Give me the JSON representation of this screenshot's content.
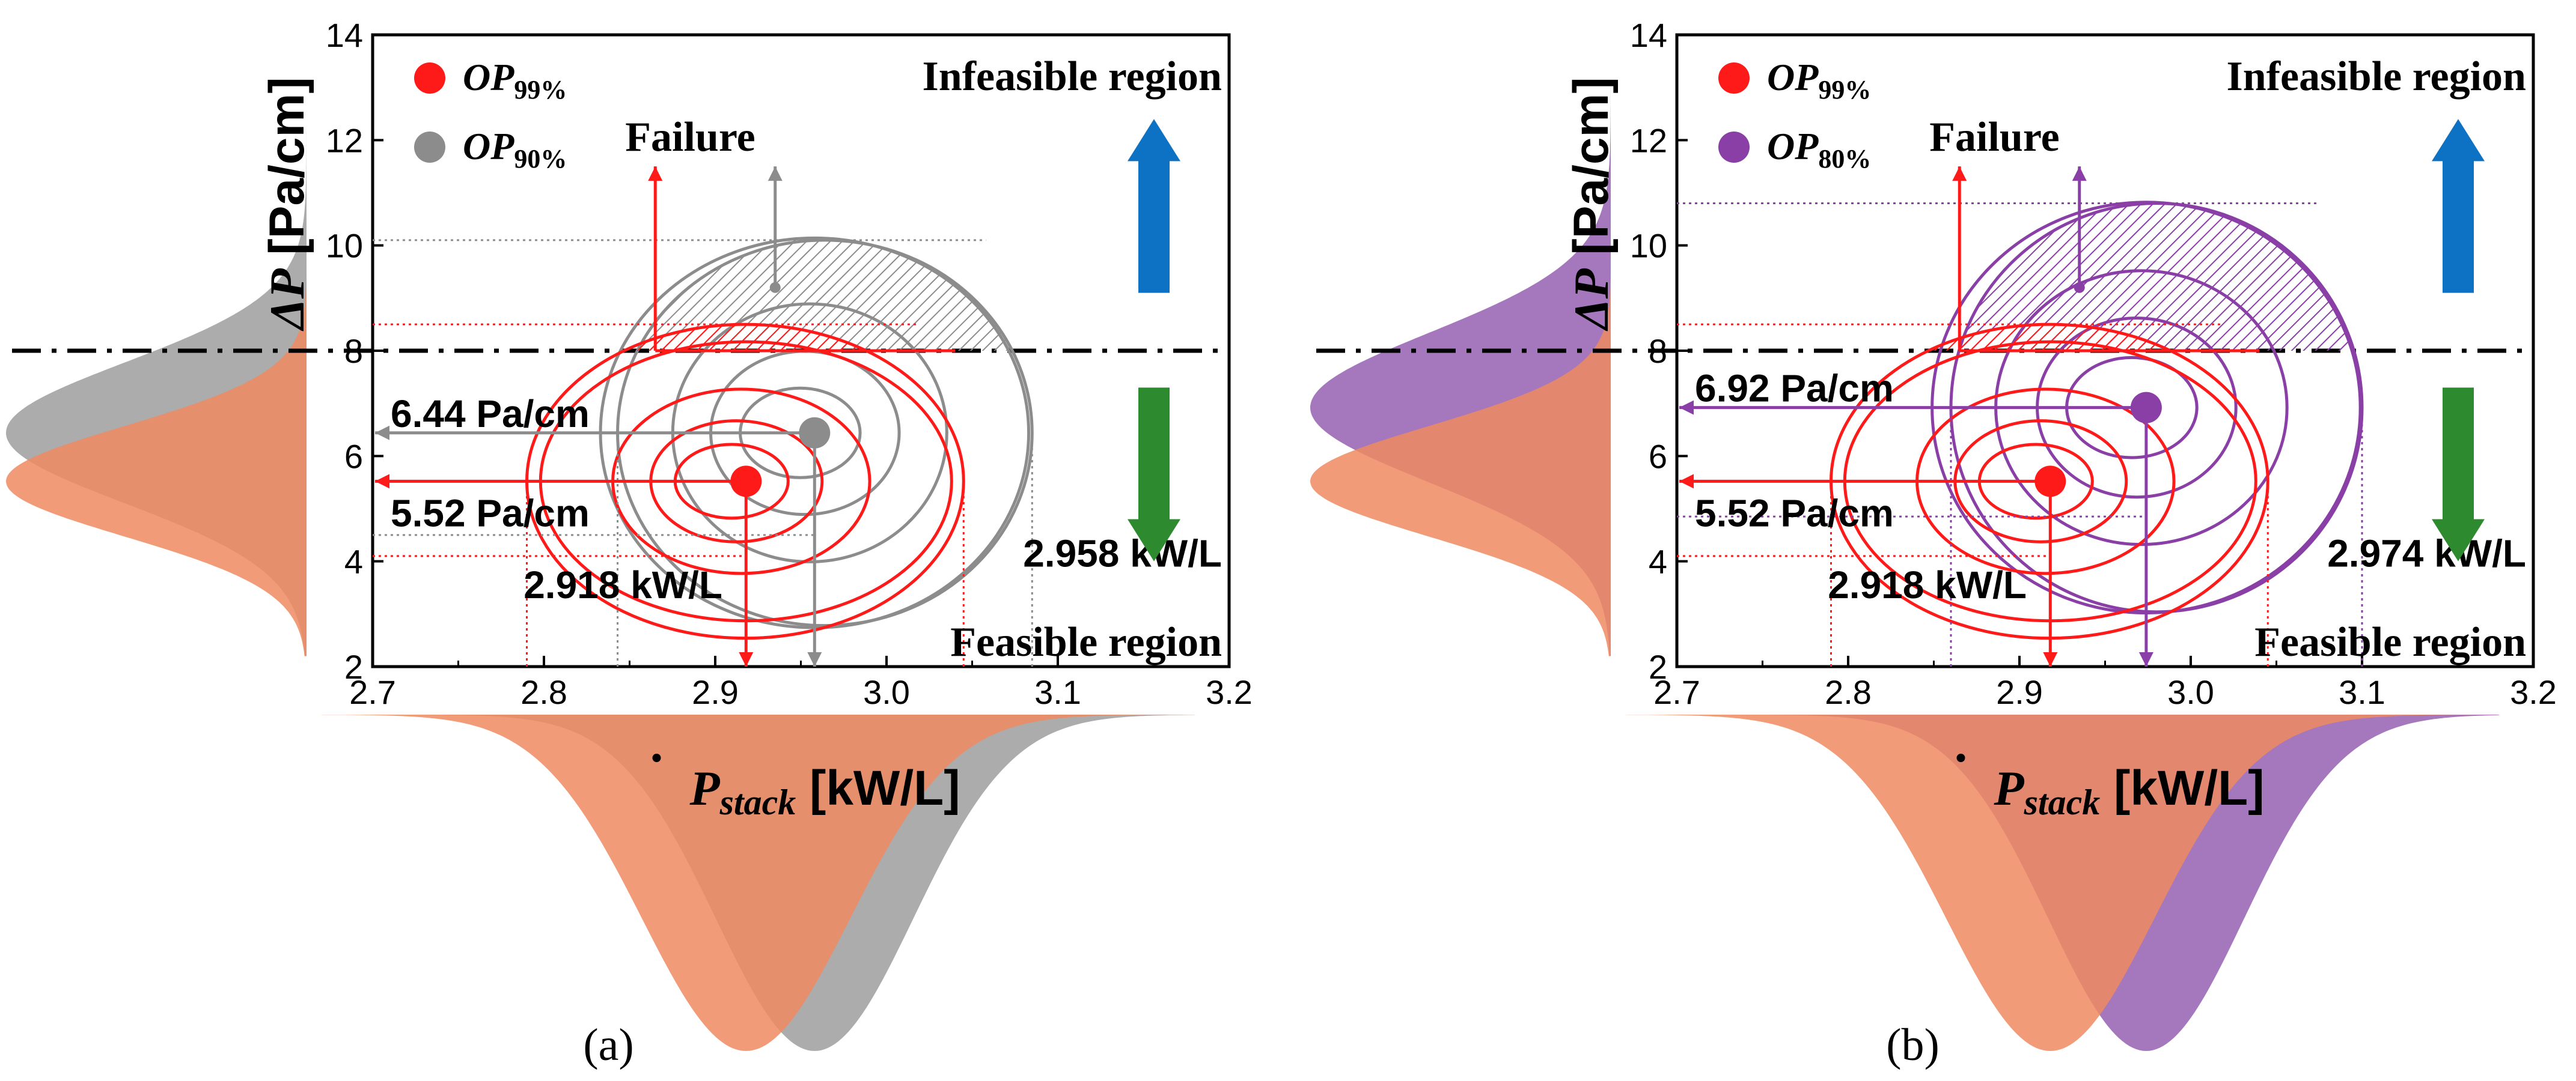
{
  "colors": {
    "red": "#ff1a1a",
    "gray": "#8c8c8c",
    "purple": "#8a3fa6",
    "orange_dist": "#ee8a62",
    "gray_dist": "#a8a8a8",
    "purple_dist": "#a070b8",
    "dark_overlap": "#c45a3e",
    "blue_arrow": "#0e72c4",
    "green_arrow": "#2e8a2e"
  },
  "chart_data": [
    {
      "type": "scatter",
      "panel_label": "(a)",
      "xlabel_main": "P",
      "xlabel_sub": "stack",
      "xlabel_unit": "[kW/L]",
      "ylabel_main": "ΔP",
      "ylabel_unit": "[Pa/cm]",
      "xlim": [
        2.7,
        3.2
      ],
      "ylim": [
        2,
        14
      ],
      "xticks": [
        "2.7",
        "2.8",
        "2.9",
        "3.0",
        "3.1",
        "3.2"
      ],
      "yticks": [
        "2",
        "4",
        "6",
        "8",
        "10",
        "12",
        "14"
      ],
      "threshold": 8,
      "infeasible_label": "Infeasible region",
      "feasible_label": "Feasible region",
      "failure_label": "Failure",
      "legend": [
        {
          "label_main": "OP",
          "label_sub": "99%",
          "color": "#ff1a1a"
        },
        {
          "label_main": "OP",
          "label_sub": "90%",
          "color": "#8c8c8c"
        }
      ],
      "series": [
        {
          "name": "OP99%",
          "x": 2.918,
          "y": 5.52,
          "color": "#ff1a1a",
          "x_label": "2.918 kW/L",
          "y_label": "5.52 Pa/cm",
          "x_ci": [
            2.79,
            3.045
          ],
          "y_ci": [
            4.1,
            8.5
          ],
          "ring_x": [
            0.12,
            0.075,
            0.05,
            0.033
          ],
          "ring_y": [
            2.65,
            1.75,
            1.15,
            0.7
          ]
        },
        {
          "name": "OP90%",
          "x": 2.958,
          "y": 6.44,
          "color": "#8c8c8c",
          "x_label": "2.958 kW/L",
          "y_label": "6.44 Pa/cm",
          "x_ci": [
            2.843,
            3.085
          ],
          "y_ci": [
            4.5,
            10.1
          ],
          "ring_x": [
            0.125,
            0.08,
            0.055,
            0.035
          ],
          "ring_y": [
            3.7,
            2.45,
            1.55,
            0.85
          ]
        }
      ]
    },
    {
      "type": "scatter",
      "panel_label": "(b)",
      "xlabel_main": "P",
      "xlabel_sub": "stack",
      "xlabel_unit": "[kW/L]",
      "ylabel_main": "ΔP",
      "ylabel_unit": "[Pa/cm]",
      "xlim": [
        2.7,
        3.2
      ],
      "ylim": [
        2,
        14
      ],
      "xticks": [
        "2.7",
        "2.8",
        "2.9",
        "3.0",
        "3.1",
        "3.2"
      ],
      "yticks": [
        "2",
        "4",
        "6",
        "8",
        "10",
        "12",
        "14"
      ],
      "threshold": 8,
      "infeasible_label": "Infeasible region",
      "feasible_label": "Feasible region",
      "failure_label": "Failure",
      "legend": [
        {
          "label_main": "OP",
          "label_sub": "99%",
          "color": "#ff1a1a"
        },
        {
          "label_main": "OP",
          "label_sub": "80%",
          "color": "#8a3fa6"
        }
      ],
      "series": [
        {
          "name": "OP99%",
          "x": 2.918,
          "y": 5.52,
          "color": "#ff1a1a",
          "x_label": "2.918 kW/L",
          "y_label": "5.52 Pa/cm",
          "x_ci": [
            2.79,
            3.045
          ],
          "y_ci": [
            4.1,
            8.5
          ],
          "ring_x": [
            0.12,
            0.075,
            0.05,
            0.033
          ],
          "ring_y": [
            2.65,
            1.75,
            1.15,
            0.7
          ]
        },
        {
          "name": "OP80%",
          "x": 2.974,
          "y": 6.92,
          "color": "#8a3fa6",
          "x_label": "2.974 kW/L",
          "y_label": "6.92 Pa/cm",
          "x_ci": [
            2.86,
            3.1
          ],
          "y_ci": [
            4.85,
            10.8
          ],
          "ring_x": [
            0.125,
            0.085,
            0.058,
            0.038
          ],
          "ring_y": [
            3.9,
            2.6,
            1.7,
            0.95
          ]
        }
      ]
    }
  ]
}
